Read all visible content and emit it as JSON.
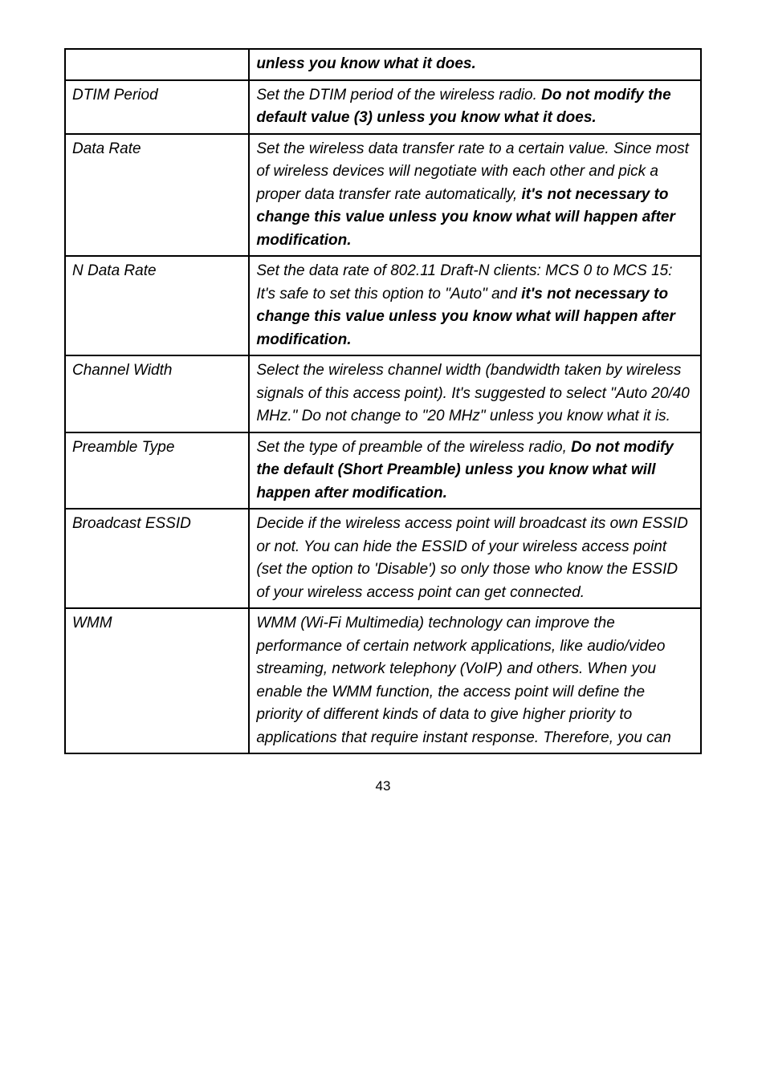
{
  "rows": [
    {
      "label": "",
      "segments": [
        {
          "text": "unless you know what it does.",
          "bold": true
        }
      ]
    },
    {
      "label": "DTIM Period",
      "segments": [
        {
          "text": "Set the DTIM period of the wireless radio. ",
          "bold": false
        },
        {
          "text": "Do not modify the default value (3) unless you know what it does.",
          "bold": true
        }
      ]
    },
    {
      "label": "Data Rate",
      "segments": [
        {
          "text": "Set the wireless data transfer rate to a certain value. Since most of wireless devices will negotiate with each other and pick a proper data transfer rate automatically, ",
          "bold": false
        },
        {
          "text": "it's not necessary to change this value unless you know what will happen after modification.",
          "bold": true
        }
      ]
    },
    {
      "label": "N Data Rate",
      "segments": [
        {
          "text": "Set the data rate of 802.11 Draft-N clients: MCS 0 to MCS 15: It's safe to set this option to \"Auto\" and ",
          "bold": false
        },
        {
          "text": "it's not necessary to change this value unless you know what will happen after modification.",
          "bold": true
        }
      ]
    },
    {
      "label": "Channel Width",
      "segments": [
        {
          "text": "Select the wireless channel width (bandwidth taken by wireless signals of this access point). It's suggested to select \"Auto 20/40 MHz.\" Do not change to \"20 MHz\" unless you know what it is.",
          "bold": false
        }
      ]
    },
    {
      "label": "Preamble Type",
      "segments": [
        {
          "text": "Set the type of preamble of the wireless radio, ",
          "bold": false
        },
        {
          "text": "Do not modify the default (Short Preamble) unless you know what will happen after modification.",
          "bold": true
        }
      ]
    },
    {
      "label": "Broadcast ESSID",
      "segments": [
        {
          "text": "Decide if the wireless access point will broadcast its own ESSID or not. You can hide the ESSID of your wireless access point (set the option to 'Disable') so only those who know the ESSID of your wireless access point can get connected.",
          "bold": false
        }
      ]
    },
    {
      "label": "WMM",
      "segments": [
        {
          "text": "WMM (Wi-Fi Multimedia) technology can improve the performance of certain network applications, like audio/video streaming, network telephony (VoIP) and others. When you enable the WMM function, the access point will define the priority of different kinds of data to give higher priority to applications that require instant response. Therefore, you can ",
          "bold": false
        }
      ]
    }
  ],
  "page_number": "43"
}
